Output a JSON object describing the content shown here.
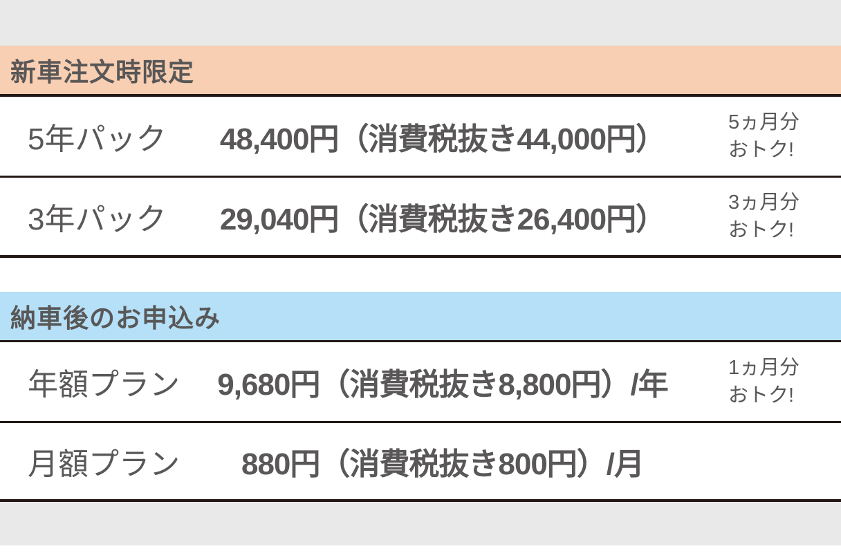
{
  "page": {
    "background_color": "#e9e9e9",
    "content_background": "#ffffff",
    "text_color": "#595757",
    "divider_color": "#231815"
  },
  "section_limited": {
    "header_label": "新車注文時限定",
    "header_color": "#f8cfb3",
    "rows": [
      {
        "plan": "5年パック",
        "price": "48,400円（消費税抜き44,000円）",
        "note_line1": "5ヵ月分",
        "note_line2": "おトク!"
      },
      {
        "plan": "3年パック",
        "price": "29,040円（消費税抜き26,400円）",
        "note_line1": "3ヵ月分",
        "note_line2": "おトク!"
      }
    ]
  },
  "section_after_delivery": {
    "header_label": "納車後のお申込み",
    "header_color": "#b5e0f7",
    "rows": [
      {
        "plan": "年額プラン",
        "price": "9,680円（消費税抜き8,800円）/年",
        "note_line1": "1ヵ月分",
        "note_line2": "おトク!"
      },
      {
        "plan": "月額プラン",
        "price": "880円（消費税抜き800円）/月",
        "note_line1": "",
        "note_line2": ""
      }
    ]
  }
}
